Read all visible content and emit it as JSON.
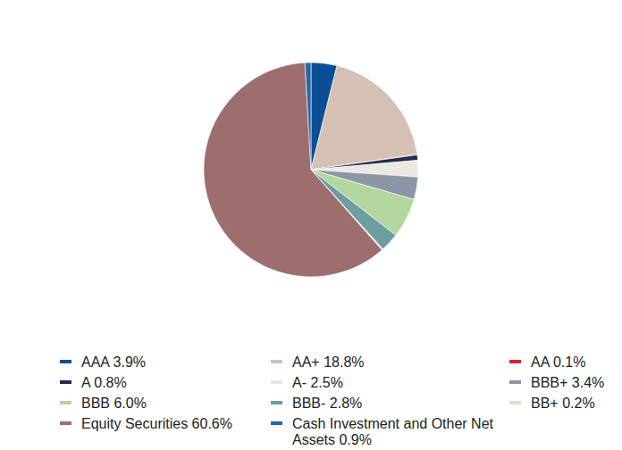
{
  "chart_data": {
    "type": "pie",
    "categories": [
      "AAA",
      "AA+",
      "AA",
      "A",
      "A-",
      "BBB+",
      "BBB",
      "BBB-",
      "BB+",
      "Equity Securities",
      "Cash Investment and Other Net Assets"
    ],
    "values": [
      3.9,
      18.8,
      0.1,
      0.8,
      2.5,
      3.4,
      6.0,
      2.8,
      0.2,
      60.6,
      0.9
    ],
    "value_labels": [
      "3.9%",
      "18.8%",
      "0.1%",
      "0.8%",
      "2.5%",
      "3.4%",
      "6.0%",
      "2.8%",
      "0.2%",
      "60.6%",
      "0.9%"
    ],
    "colors": [
      "#0a4f96",
      "#d4c1b4",
      "#d62728",
      "#1f2d4e",
      "#ede7e1",
      "#8b97a6",
      "#b3d69e",
      "#6b9ea1",
      "#e8dcd2",
      "#9e6e6e",
      "#2a67a3"
    ],
    "legend": "bottom"
  }
}
